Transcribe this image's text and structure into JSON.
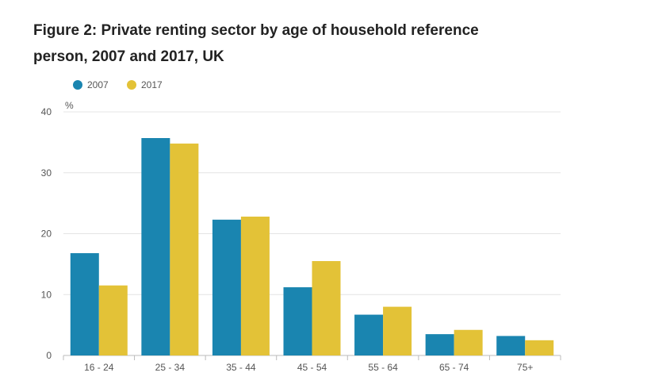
{
  "chart_data": {
    "type": "bar",
    "title": "Figure 2: Private renting sector by age of household reference person, 2007 and 2017, UK",
    "ylabel": "%",
    "xlabel": "",
    "ylim": [
      0,
      40
    ],
    "yticks": [
      0,
      10,
      20,
      30,
      40
    ],
    "categories": [
      "16 - 24",
      "25 - 34",
      "35 - 44",
      "45 - 54",
      "55 - 64",
      "65 - 74",
      "75+"
    ],
    "series": [
      {
        "name": "2007",
        "color": "#1a85b0",
        "values": [
          16.8,
          35.7,
          22.3,
          11.2,
          6.7,
          3.5,
          3.2
        ]
      },
      {
        "name": "2017",
        "color": "#e3c237",
        "values": [
          11.5,
          34.8,
          22.8,
          15.5,
          8.0,
          4.2,
          2.5
        ]
      }
    ],
    "grid": true,
    "legend": "top-left"
  }
}
